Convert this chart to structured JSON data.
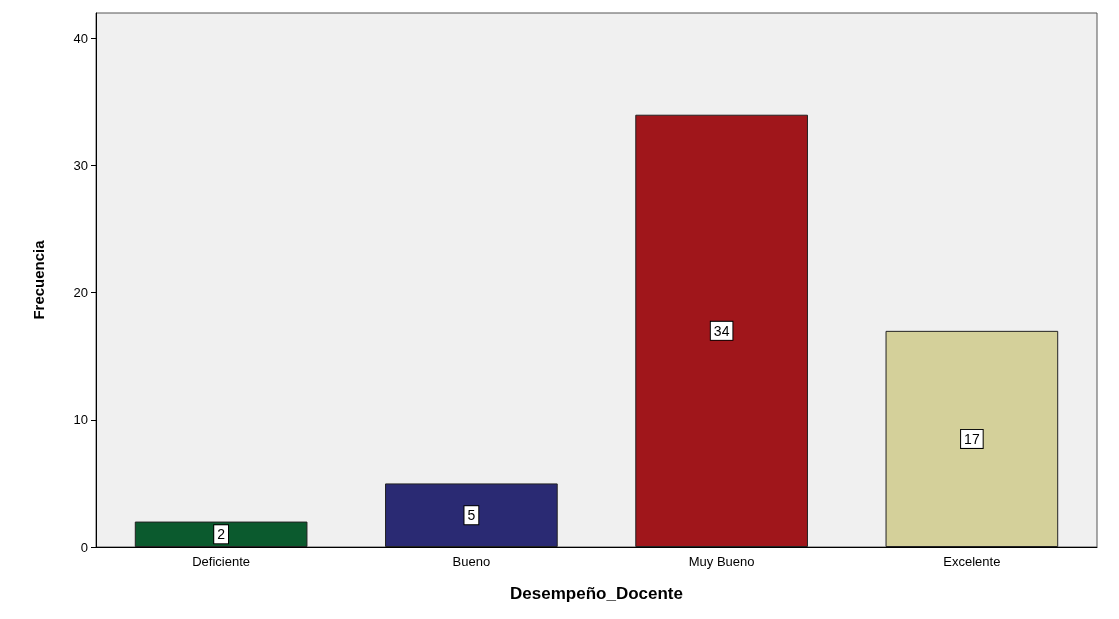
{
  "chart_data": {
    "type": "bar",
    "xlabel": "Desempeño_Docente",
    "ylabel": "Frecuencia",
    "categories": [
      "Deficiente",
      "Bueno",
      "Muy Bueno",
      "Excelente"
    ],
    "values": [
      2,
      5,
      34,
      17
    ],
    "colors": [
      "#0b5a2e",
      "#2a2a73",
      "#a0161b",
      "#d4d09a"
    ],
    "ylim": [
      0,
      42
    ],
    "yticks": [
      0,
      10,
      20,
      30,
      40
    ],
    "grid": false,
    "data_labels": true
  }
}
